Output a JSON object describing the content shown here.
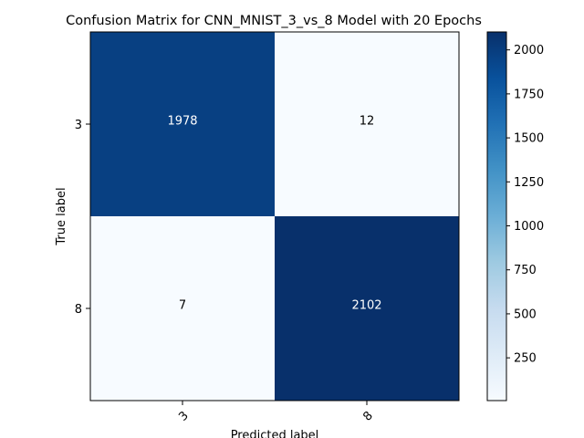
{
  "chart_data": {
    "type": "heatmap",
    "title": "Confusion Matrix for CNN_MNIST_3_vs_8 Model with 20 Epochs",
    "xlabel": "Predicted label",
    "ylabel": "True label",
    "x_categories": [
      "3",
      "8"
    ],
    "y_categories": [
      "3",
      "8"
    ],
    "values": [
      [
        1978,
        12
      ],
      [
        7,
        2102
      ]
    ],
    "cell_labels": [
      [
        "1978",
        "12"
      ],
      [
        "7",
        "2102"
      ]
    ],
    "colorbar": {
      "min": 7,
      "max": 2102,
      "ticks": [
        250,
        500,
        750,
        1000,
        1250,
        1500,
        1750,
        2000
      ],
      "tick_labels": [
        "250",
        "500",
        "750",
        "1000",
        "1250",
        "1500",
        "1750",
        "2000"
      ],
      "colormap": "Blues"
    },
    "colors": {
      "low": "#f7fbff",
      "high": "#08306b",
      "text_light": "#ffffff",
      "text_dark": "#000000"
    }
  }
}
